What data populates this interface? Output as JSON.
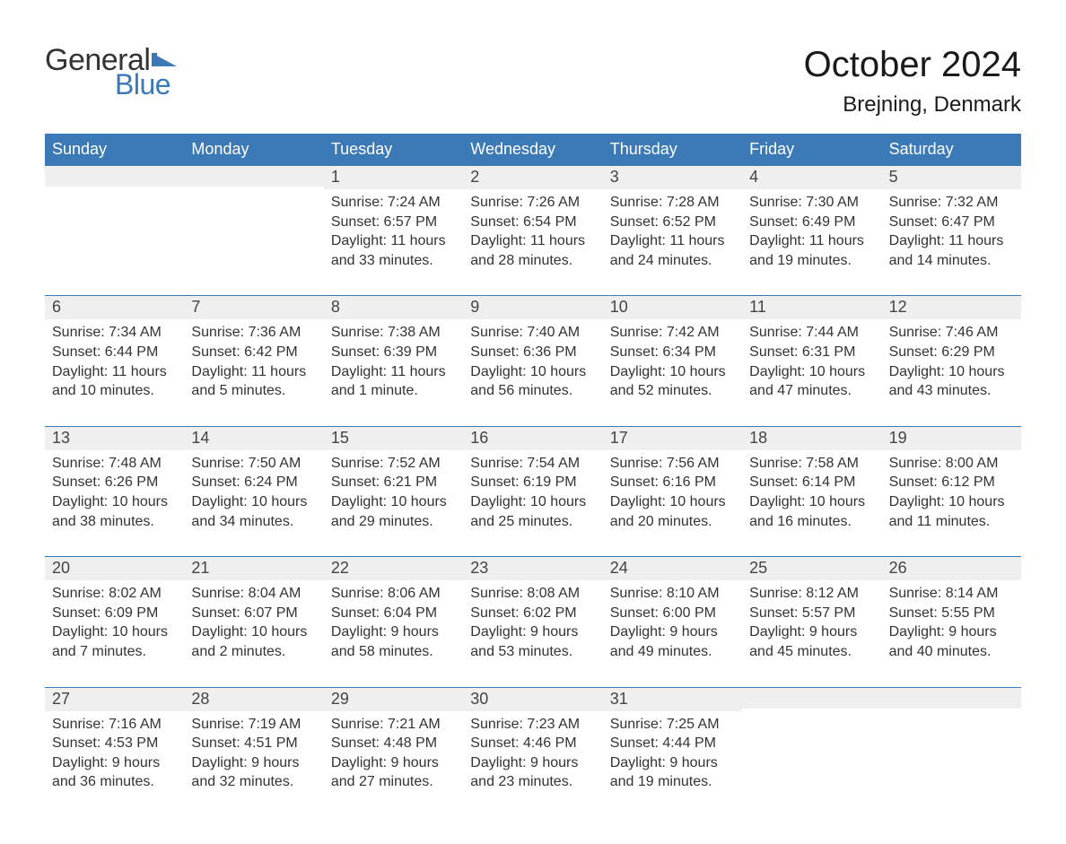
{
  "logo": {
    "word1": "General",
    "word2": "Blue",
    "word1_color": "#333333",
    "word2_color": "#3b79b7",
    "icon_color": "#3b79b7"
  },
  "title": {
    "month_year": "October 2024",
    "location": "Brejning, Denmark"
  },
  "colors": {
    "header_bg": "#3b79b7",
    "header_text": "#ffffff",
    "daynum_bg": "#efefef",
    "daynum_border": "#3b79b7",
    "body_text": "#333333",
    "page_bg": "#ffffff"
  },
  "day_headers": [
    "Sunday",
    "Monday",
    "Tuesday",
    "Wednesday",
    "Thursday",
    "Friday",
    "Saturday"
  ],
  "weeks": [
    [
      {
        "num": "",
        "sunrise": "",
        "sunset": "",
        "daylight": ""
      },
      {
        "num": "",
        "sunrise": "",
        "sunset": "",
        "daylight": ""
      },
      {
        "num": "1",
        "sunrise": "Sunrise: 7:24 AM",
        "sunset": "Sunset: 6:57 PM",
        "daylight": "Daylight: 11 hours and 33 minutes."
      },
      {
        "num": "2",
        "sunrise": "Sunrise: 7:26 AM",
        "sunset": "Sunset: 6:54 PM",
        "daylight": "Daylight: 11 hours and 28 minutes."
      },
      {
        "num": "3",
        "sunrise": "Sunrise: 7:28 AM",
        "sunset": "Sunset: 6:52 PM",
        "daylight": "Daylight: 11 hours and 24 minutes."
      },
      {
        "num": "4",
        "sunrise": "Sunrise: 7:30 AM",
        "sunset": "Sunset: 6:49 PM",
        "daylight": "Daylight: 11 hours and 19 minutes."
      },
      {
        "num": "5",
        "sunrise": "Sunrise: 7:32 AM",
        "sunset": "Sunset: 6:47 PM",
        "daylight": "Daylight: 11 hours and 14 minutes."
      }
    ],
    [
      {
        "num": "6",
        "sunrise": "Sunrise: 7:34 AM",
        "sunset": "Sunset: 6:44 PM",
        "daylight": "Daylight: 11 hours and 10 minutes."
      },
      {
        "num": "7",
        "sunrise": "Sunrise: 7:36 AM",
        "sunset": "Sunset: 6:42 PM",
        "daylight": "Daylight: 11 hours and 5 minutes."
      },
      {
        "num": "8",
        "sunrise": "Sunrise: 7:38 AM",
        "sunset": "Sunset: 6:39 PM",
        "daylight": "Daylight: 11 hours and 1 minute."
      },
      {
        "num": "9",
        "sunrise": "Sunrise: 7:40 AM",
        "sunset": "Sunset: 6:36 PM",
        "daylight": "Daylight: 10 hours and 56 minutes."
      },
      {
        "num": "10",
        "sunrise": "Sunrise: 7:42 AM",
        "sunset": "Sunset: 6:34 PM",
        "daylight": "Daylight: 10 hours and 52 minutes."
      },
      {
        "num": "11",
        "sunrise": "Sunrise: 7:44 AM",
        "sunset": "Sunset: 6:31 PM",
        "daylight": "Daylight: 10 hours and 47 minutes."
      },
      {
        "num": "12",
        "sunrise": "Sunrise: 7:46 AM",
        "sunset": "Sunset: 6:29 PM",
        "daylight": "Daylight: 10 hours and 43 minutes."
      }
    ],
    [
      {
        "num": "13",
        "sunrise": "Sunrise: 7:48 AM",
        "sunset": "Sunset: 6:26 PM",
        "daylight": "Daylight: 10 hours and 38 minutes."
      },
      {
        "num": "14",
        "sunrise": "Sunrise: 7:50 AM",
        "sunset": "Sunset: 6:24 PM",
        "daylight": "Daylight: 10 hours and 34 minutes."
      },
      {
        "num": "15",
        "sunrise": "Sunrise: 7:52 AM",
        "sunset": "Sunset: 6:21 PM",
        "daylight": "Daylight: 10 hours and 29 minutes."
      },
      {
        "num": "16",
        "sunrise": "Sunrise: 7:54 AM",
        "sunset": "Sunset: 6:19 PM",
        "daylight": "Daylight: 10 hours and 25 minutes."
      },
      {
        "num": "17",
        "sunrise": "Sunrise: 7:56 AM",
        "sunset": "Sunset: 6:16 PM",
        "daylight": "Daylight: 10 hours and 20 minutes."
      },
      {
        "num": "18",
        "sunrise": "Sunrise: 7:58 AM",
        "sunset": "Sunset: 6:14 PM",
        "daylight": "Daylight: 10 hours and 16 minutes."
      },
      {
        "num": "19",
        "sunrise": "Sunrise: 8:00 AM",
        "sunset": "Sunset: 6:12 PM",
        "daylight": "Daylight: 10 hours and 11 minutes."
      }
    ],
    [
      {
        "num": "20",
        "sunrise": "Sunrise: 8:02 AM",
        "sunset": "Sunset: 6:09 PM",
        "daylight": "Daylight: 10 hours and 7 minutes."
      },
      {
        "num": "21",
        "sunrise": "Sunrise: 8:04 AM",
        "sunset": "Sunset: 6:07 PM",
        "daylight": "Daylight: 10 hours and 2 minutes."
      },
      {
        "num": "22",
        "sunrise": "Sunrise: 8:06 AM",
        "sunset": "Sunset: 6:04 PM",
        "daylight": "Daylight: 9 hours and 58 minutes."
      },
      {
        "num": "23",
        "sunrise": "Sunrise: 8:08 AM",
        "sunset": "Sunset: 6:02 PM",
        "daylight": "Daylight: 9 hours and 53 minutes."
      },
      {
        "num": "24",
        "sunrise": "Sunrise: 8:10 AM",
        "sunset": "Sunset: 6:00 PM",
        "daylight": "Daylight: 9 hours and 49 minutes."
      },
      {
        "num": "25",
        "sunrise": "Sunrise: 8:12 AM",
        "sunset": "Sunset: 5:57 PM",
        "daylight": "Daylight: 9 hours and 45 minutes."
      },
      {
        "num": "26",
        "sunrise": "Sunrise: 8:14 AM",
        "sunset": "Sunset: 5:55 PM",
        "daylight": "Daylight: 9 hours and 40 minutes."
      }
    ],
    [
      {
        "num": "27",
        "sunrise": "Sunrise: 7:16 AM",
        "sunset": "Sunset: 4:53 PM",
        "daylight": "Daylight: 9 hours and 36 minutes."
      },
      {
        "num": "28",
        "sunrise": "Sunrise: 7:19 AM",
        "sunset": "Sunset: 4:51 PM",
        "daylight": "Daylight: 9 hours and 32 minutes."
      },
      {
        "num": "29",
        "sunrise": "Sunrise: 7:21 AM",
        "sunset": "Sunset: 4:48 PM",
        "daylight": "Daylight: 9 hours and 27 minutes."
      },
      {
        "num": "30",
        "sunrise": "Sunrise: 7:23 AM",
        "sunset": "Sunset: 4:46 PM",
        "daylight": "Daylight: 9 hours and 23 minutes."
      },
      {
        "num": "31",
        "sunrise": "Sunrise: 7:25 AM",
        "sunset": "Sunset: 4:44 PM",
        "daylight": "Daylight: 9 hours and 19 minutes."
      },
      {
        "num": "",
        "sunrise": "",
        "sunset": "",
        "daylight": ""
      },
      {
        "num": "",
        "sunrise": "",
        "sunset": "",
        "daylight": ""
      }
    ]
  ]
}
